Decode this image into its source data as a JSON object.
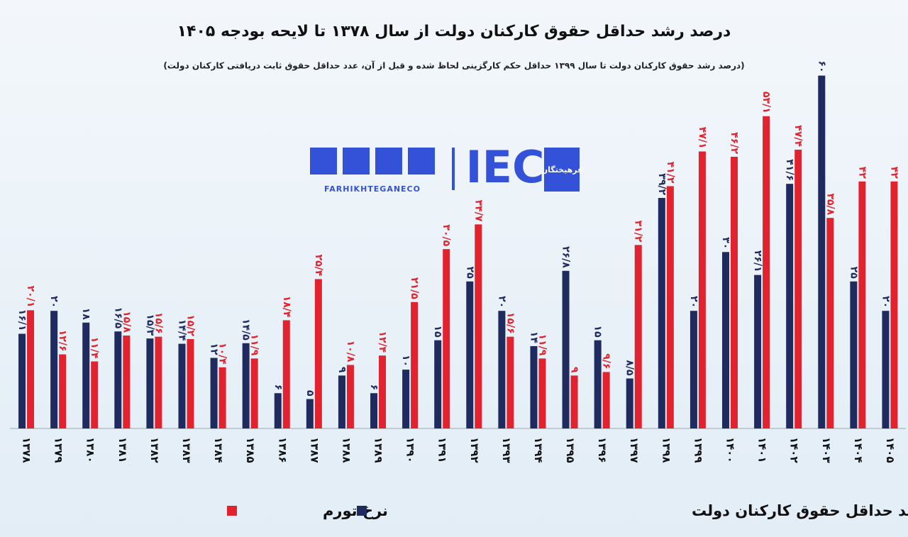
{
  "chart_data": {
    "type": "bar",
    "title": "درصد رشد حداقل حقوق کارکنان دولت از سال ۱۳۷۸ تا لایحه بودجه ۱۴۰۵",
    "subtitle": "(درصد رشد حقوق کارکنان دولت تا سال ۱۳۹۹ حداقل حکم کارگزینی لحاظ شده و قبل از آن، عدد حداقل حقوق ثابت دریافتی کارکنان دولت)",
    "categories": [
      "۱۳۷۸",
      "۱۳۷۹",
      "۱۳۸۰",
      "۱۳۸۱",
      "۱۳۸۲",
      "۱۳۸۳",
      "۱۳۸۴",
      "۱۳۸۵",
      "۱۳۸۶",
      "۱۳۸۷",
      "۱۳۸۸",
      "۱۳۸۹",
      "۱۳۹۰",
      "۱۳۹۱",
      "۱۳۹۲",
      "۱۳۹۳",
      "۱۳۹۴",
      "۱۳۹۵",
      "۱۳۹۶",
      "۱۳۹۷",
      "۱۳۹۸",
      "۱۳۹۹",
      "۱۴۰۰",
      "۱۴۰۱",
      "۱۴۰۲",
      "۱۴۰۳",
      "۱۴۰۴",
      "۱۴۰۵"
    ],
    "series": [
      {
        "name": "درصد رشد حداقل حقوق کارکنان دولت",
        "color": "#1f2a5e",
        "values": [
          16.1,
          20,
          18,
          16.5,
          15.3,
          14.4,
          12,
          14.5,
          6,
          5,
          9,
          6,
          10,
          15,
          25,
          20,
          14,
          26.8,
          15,
          8.5,
          39.2,
          20,
          30,
          26.1,
          41.6,
          60,
          25,
          20
        ],
        "value_labels": [
          "۱۶/۱",
          "۲۰",
          "۱۸",
          "۱۶/۵",
          "۱۵/۳",
          "۱۴/۴",
          "۱۲",
          "۱۴/۵",
          "۶",
          "۵",
          "۹",
          "۶",
          "۱۰",
          "۱۵",
          "۲۵",
          "۲۰",
          "۱۴",
          "۲۶/۸",
          "۱۵",
          "۸/۵",
          "۳۹/۲",
          "۲۰",
          "۳۰",
          "۲۶/۱",
          "۴۱/۶",
          "۶۰",
          "۲۵",
          "۲۰"
        ]
      },
      {
        "name": "نرخ تورم",
        "color": "#e0232e",
        "values": [
          20.1,
          12.6,
          11.4,
          15.8,
          15.6,
          15.2,
          10.4,
          11.9,
          18.4,
          25.4,
          10.8,
          12.4,
          21.5,
          30.5,
          34.7,
          15.6,
          11.9,
          9,
          9.6,
          31.2,
          41.2,
          47.1,
          46.2,
          53.1,
          47.4,
          35.8,
          42,
          42
        ],
        "value_labels": [
          "۲۰/۱",
          "۱۲/۶",
          "۱۱/۴",
          "۱۵/۸",
          "۱۵/۶",
          "۱۵/۲",
          "۱۰/۴",
          "۱۱/۹",
          "۱۸/۴",
          "۲۵/۴",
          "۱۰/۸",
          "۱۲/۴",
          "۲۱/۵",
          "۳۰/۵",
          "۳۴/۷",
          "۱۵/۶",
          "۱۱/۹",
          "۹",
          "۹/۶",
          "۳۱/۲",
          "۴۱/۲",
          "۴۷/۱",
          "۴۶/۲",
          "۵۳/۱",
          "۴۷/۴",
          "۳۵/۸",
          "۴۲",
          "۴۲"
        ]
      }
    ],
    "ylim": [
      0,
      62
    ]
  },
  "logo": {
    "handle": "FARHIKHTEGANECO",
    "mark": "IEC",
    "name": "فرهیختگان"
  }
}
